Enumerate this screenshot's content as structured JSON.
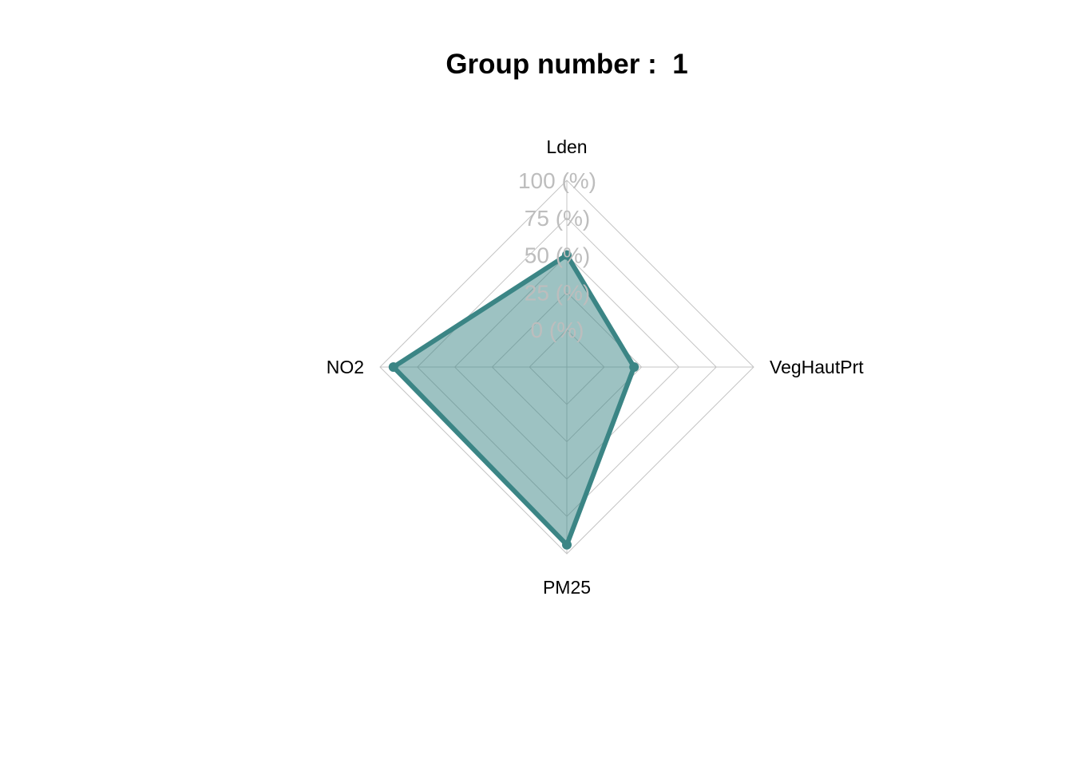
{
  "chart_data": {
    "type": "radar",
    "title": "Group number :  1",
    "axes": [
      "Lden",
      "VegHautPrt",
      "PM25",
      "NO2"
    ],
    "levels": [
      0,
      25,
      50,
      75,
      100
    ],
    "level_labels": [
      "0 (%)",
      "25 (%)",
      "50 (%)",
      "75 (%)",
      "100 (%)"
    ],
    "range": [
      0,
      100
    ],
    "series": [
      {
        "values": [
          50,
          20,
          94,
          91
        ]
      }
    ],
    "colors": {
      "series_line": "#3b8585",
      "series_fill": "#3b8585",
      "grid": "#c4c4c4",
      "level_text": "#bdbdbd"
    }
  }
}
